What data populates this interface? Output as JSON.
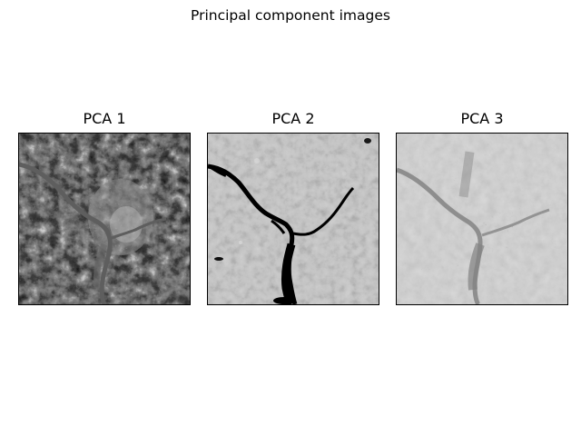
{
  "figure": {
    "suptitle": "Principal component images"
  },
  "panels": [
    {
      "title": "PCA 1"
    },
    {
      "title": "PCA 2"
    },
    {
      "title": "PCA 3"
    }
  ]
}
